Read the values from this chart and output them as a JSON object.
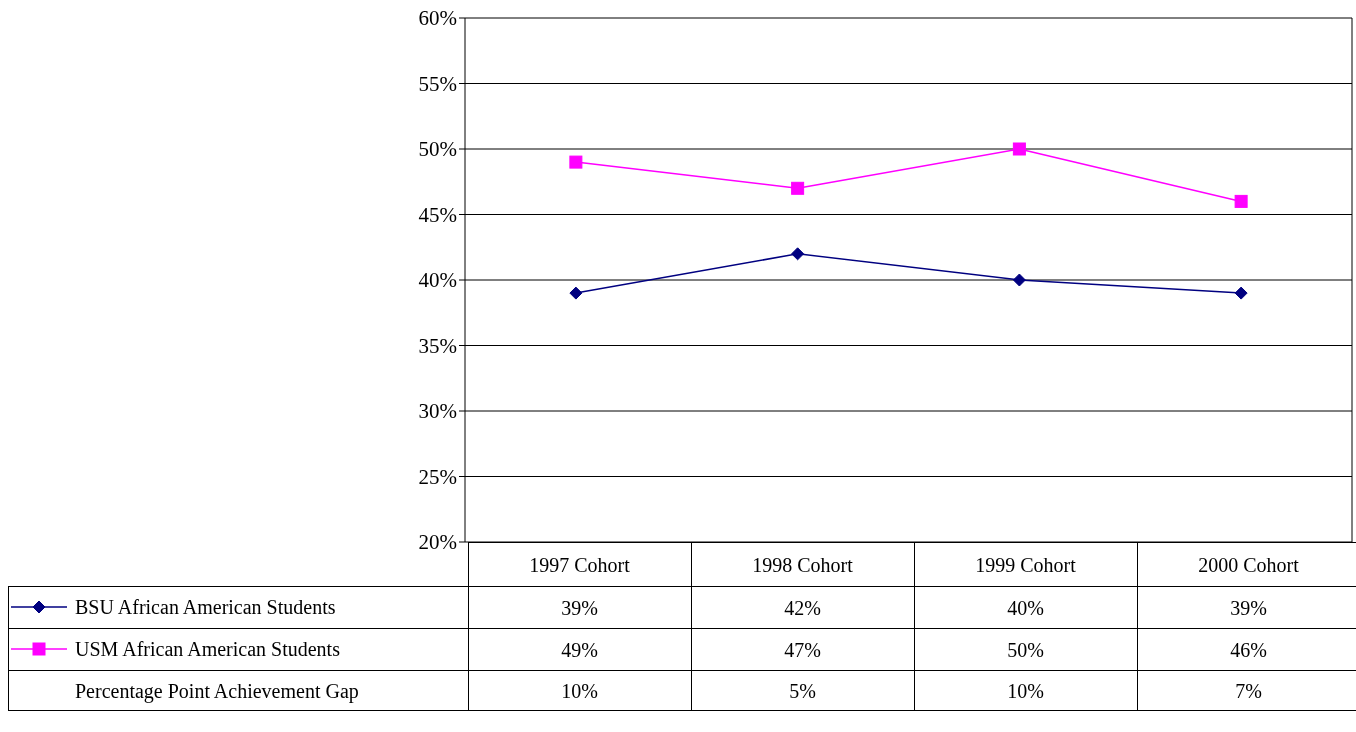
{
  "chart_data": {
    "type": "line",
    "categories": [
      "1997 Cohort",
      "1998 Cohort",
      "1999 Cohort",
      "2000 Cohort"
    ],
    "series": [
      {
        "name": "BSU African American Students",
        "color": "#000080",
        "marker": "diamond",
        "values": [
          39,
          42,
          40,
          39
        ],
        "value_labels": [
          "39%",
          "42%",
          "40%",
          "39%"
        ]
      },
      {
        "name": "USM African American Students",
        "color": "#ff00ff",
        "marker": "square",
        "values": [
          49,
          47,
          50,
          46
        ],
        "value_labels": [
          "49%",
          "47%",
          "50%",
          "46%"
        ]
      }
    ],
    "annotations": [
      "Percentage Point Achievement Gap",
      "10%",
      "5%",
      "10%",
      "7%"
    ],
    "ylim": [
      20,
      60
    ],
    "yticks": [
      {
        "value": 20,
        "label": "20%"
      },
      {
        "value": 25,
        "label": "25%"
      },
      {
        "value": 30,
        "label": "30%"
      },
      {
        "value": 35,
        "label": "35%"
      },
      {
        "value": 40,
        "label": "40%"
      },
      {
        "value": 45,
        "label": "45%"
      },
      {
        "value": 50,
        "label": "50%"
      },
      {
        "value": 55,
        "label": "55%"
      },
      {
        "value": 60,
        "label": "60%"
      }
    ],
    "grid": "y",
    "legend": "bottom left"
  }
}
